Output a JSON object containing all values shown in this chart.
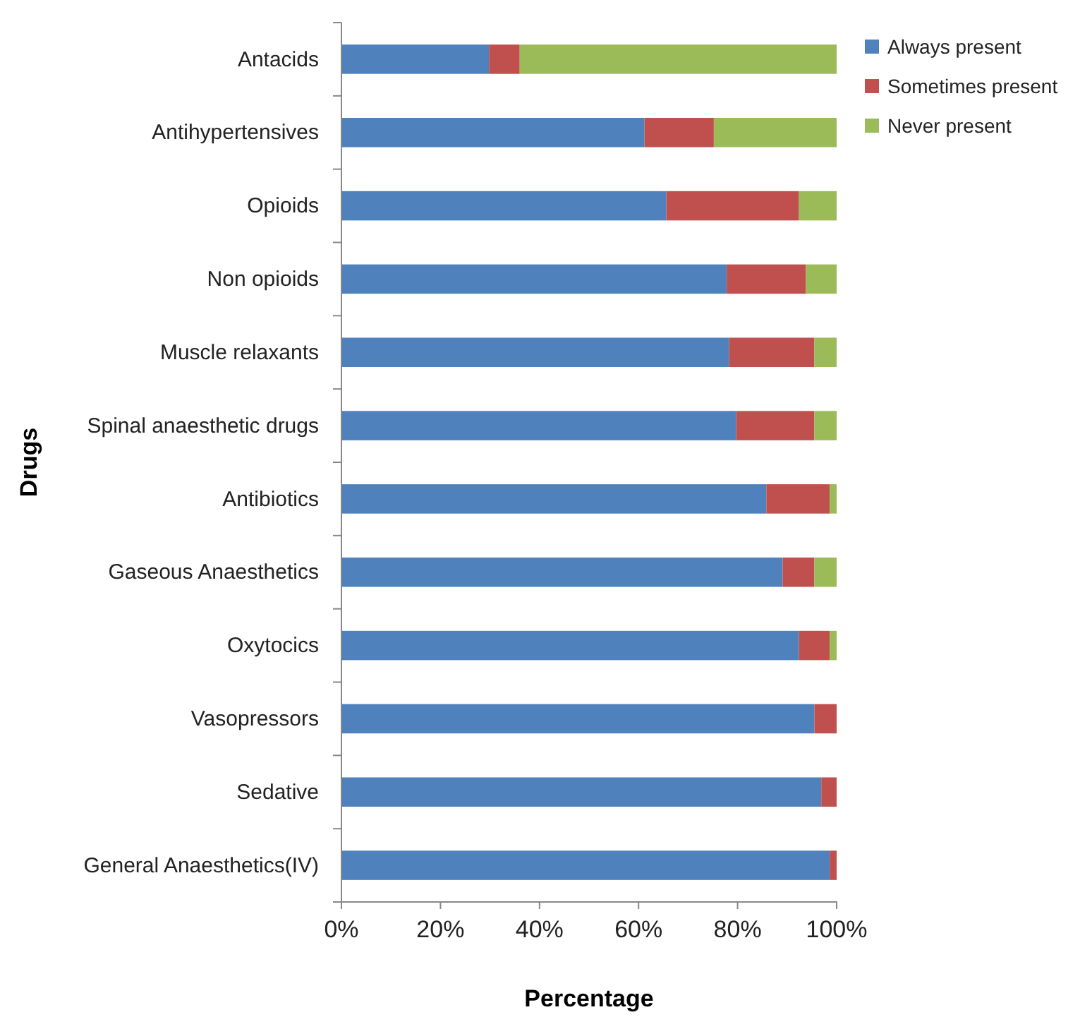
{
  "chart_data": {
    "type": "bar",
    "orientation": "horizontal",
    "stacked": true,
    "xlabel": "Percentage",
    "ylabel": "Drugs",
    "categories": [
      "Antacids",
      "Antihypertensives",
      "Opioids",
      "Non opioids",
      "Muscle relaxants",
      "Spinal anaesthetic drugs",
      "Antibiotics",
      "Gaseous Anaesthetics",
      "Oxytocics",
      "Vasopressors",
      "Sedative",
      "General Anaesthetics(IV)"
    ],
    "series": [
      {
        "name": "Always present",
        "color": "#4f81bd",
        "values": [
          29.8,
          61.2,
          65.6,
          77.8,
          78.3,
          79.7,
          85.8,
          89.1,
          92.4,
          95.5,
          96.9,
          98.6
        ]
      },
      {
        "name": "Sometimes present",
        "color": "#c0504d",
        "values": [
          6.2,
          14,
          26.8,
          16,
          17.2,
          15.8,
          12.8,
          6.4,
          6.2,
          4.5,
          3.1,
          1.4
        ]
      },
      {
        "name": "Never present",
        "color": "#9bbb59",
        "values": [
          64,
          24.8,
          7.6,
          6.2,
          4.5,
          4.5,
          1.4,
          4.5,
          1.4,
          null,
          null,
          null
        ]
      }
    ],
    "xlim": [
      0,
      100
    ],
    "xticks": [
      {
        "value": 0,
        "label": "0%"
      },
      {
        "value": 20,
        "label": "20%"
      },
      {
        "value": 40,
        "label": "40%"
      },
      {
        "value": 60,
        "label": "60%"
      },
      {
        "value": 80,
        "label": "80%"
      },
      {
        "value": 100,
        "label": "100%"
      }
    ],
    "grid": false,
    "legend": "top right"
  }
}
